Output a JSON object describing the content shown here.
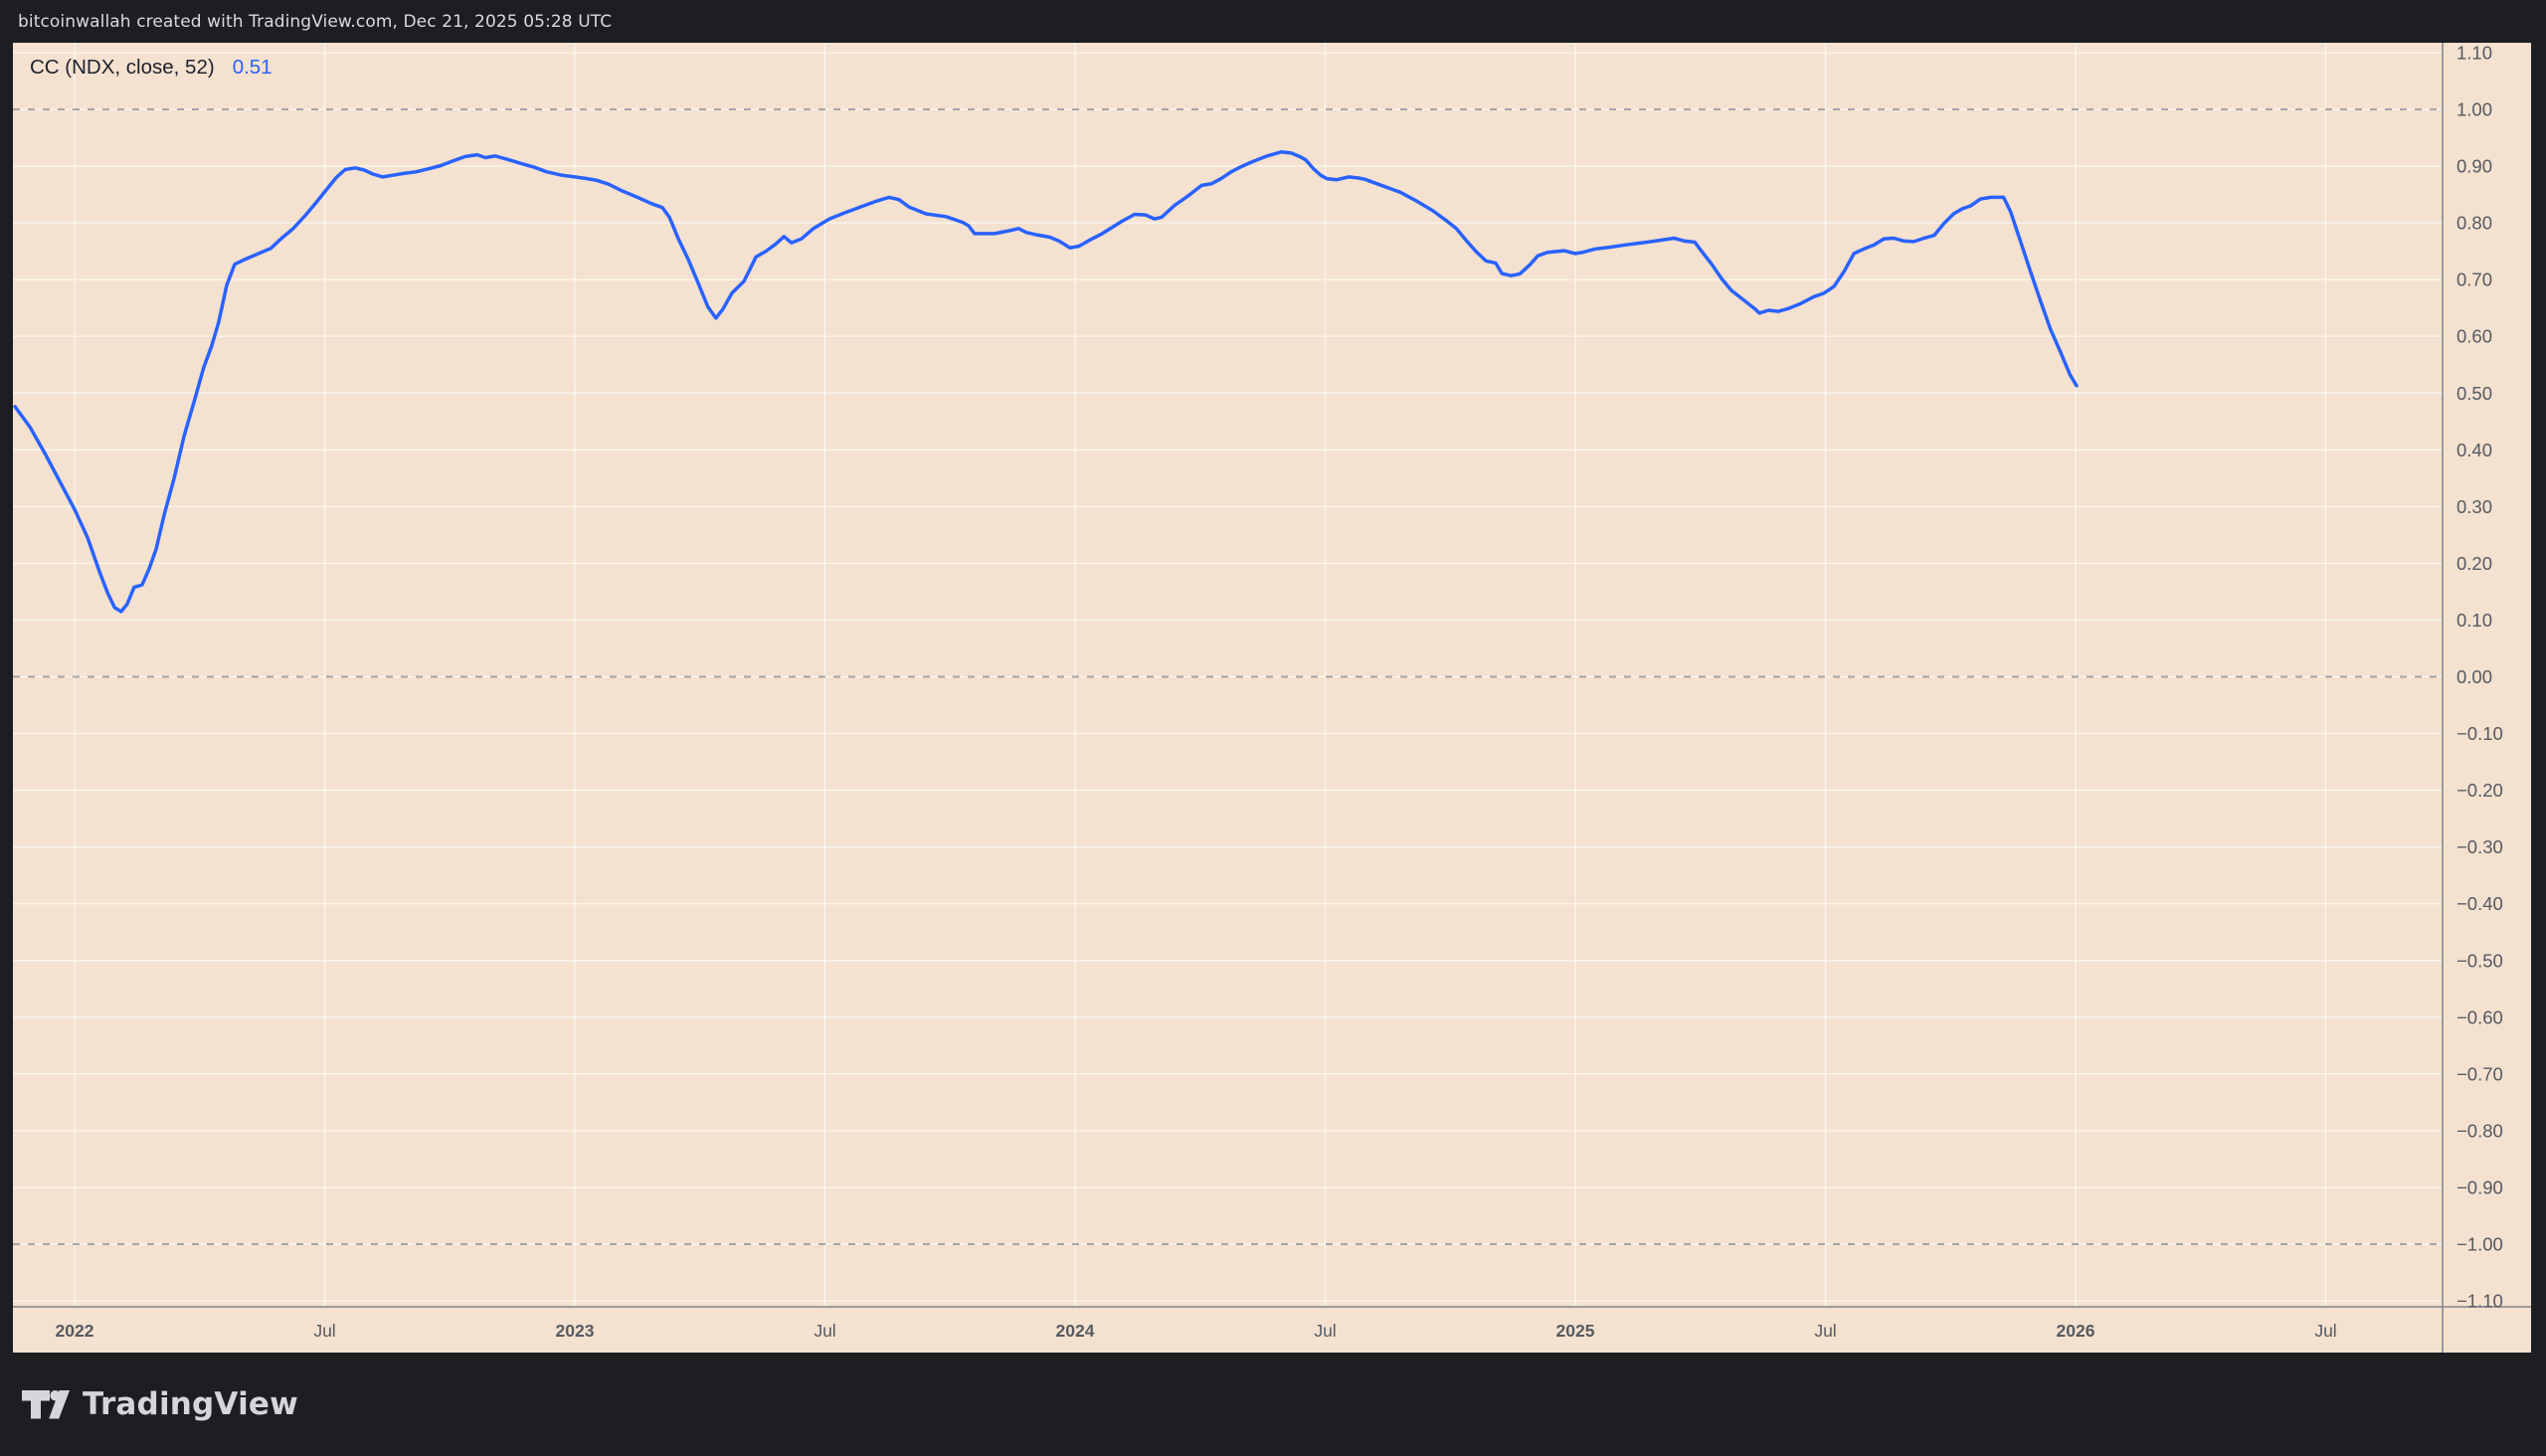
{
  "header": {
    "attribution": "bitcoinwallah created with TradingView.com, Dec 21, 2025 05:28 UTC"
  },
  "legend": {
    "label": "CC (NDX, close, 52)",
    "value": "0.51"
  },
  "footer": {
    "brand": "TradingView"
  },
  "colors": {
    "chrome_bg": "#1d1e22",
    "chart_bg": "#f4e1cf",
    "line": "#2962FF",
    "grid": "rgba(255,255,255,0.65)",
    "dashed_level": "#a7a4a8",
    "axis_separator": "#81838a",
    "axis_text": "#565a62",
    "legend_text": "#1e222d",
    "value_text": "#2962FF",
    "attribution_text": "#d9dadd",
    "brand_text": "#d4d6da"
  },
  "chart_data": {
    "type": "line",
    "title": "CC (NDX, close, 52)",
    "indicator": "Correlation Coefficient",
    "symbol": "NDX",
    "source": "close",
    "length": 52,
    "last_value": 0.51,
    "ylim": [
      -1.1,
      1.1
    ],
    "y_step": 0.1,
    "grid": true,
    "legend_position": "top-left",
    "dashed_levels": [
      1.0,
      0.0,
      -1.0
    ],
    "y_ticks": [
      {
        "label": "1.10",
        "value": 1.1
      },
      {
        "label": "1.00",
        "value": 1.0
      },
      {
        "label": "0.90",
        "value": 0.9
      },
      {
        "label": "0.80",
        "value": 0.8
      },
      {
        "label": "0.70",
        "value": 0.7
      },
      {
        "label": "0.60",
        "value": 0.6
      },
      {
        "label": "0.50",
        "value": 0.5
      },
      {
        "label": "0.40",
        "value": 0.4
      },
      {
        "label": "0.30",
        "value": 0.3
      },
      {
        "label": "0.20",
        "value": 0.2
      },
      {
        "label": "0.10",
        "value": 0.1
      },
      {
        "label": "0.00",
        "value": 0.0
      },
      {
        "label": "−0.10",
        "value": -0.1
      },
      {
        "label": "−0.20",
        "value": -0.2
      },
      {
        "label": "−0.30",
        "value": -0.3
      },
      {
        "label": "−0.40",
        "value": -0.4
      },
      {
        "label": "−0.50",
        "value": -0.5
      },
      {
        "label": "−0.60",
        "value": -0.6
      },
      {
        "label": "−0.70",
        "value": -0.7
      },
      {
        "label": "−0.80",
        "value": -0.8
      },
      {
        "label": "−0.90",
        "value": -0.9
      },
      {
        "label": "−1.00",
        "value": -1.0
      },
      {
        "label": "−1.10",
        "value": -1.1
      }
    ],
    "x_ticks": [
      {
        "label": "2022",
        "year": 2022.0,
        "bold": true
      },
      {
        "label": "Jul",
        "year": 2022.5,
        "bold": false
      },
      {
        "label": "2023",
        "year": 2023.0,
        "bold": true
      },
      {
        "label": "Jul",
        "year": 2023.5,
        "bold": false
      },
      {
        "label": "2024",
        "year": 2024.0,
        "bold": true
      },
      {
        "label": "Jul",
        "year": 2024.5,
        "bold": false
      },
      {
        "label": "2025",
        "year": 2025.0,
        "bold": true
      },
      {
        "label": "Jul",
        "year": 2025.5,
        "bold": false
      },
      {
        "label": "2026",
        "year": 2026.0,
        "bold": true
      },
      {
        "label": "Jul",
        "year": 2026.5,
        "bold": false
      }
    ],
    "series": [
      {
        "name": "CC (NDX, close, 52)",
        "color": "#2962FF",
        "points": [
          [
            2021.881,
            0.476
          ],
          [
            2021.911,
            0.44
          ],
          [
            2021.94,
            0.395
          ],
          [
            2021.97,
            0.345
          ],
          [
            2022.0,
            0.295
          ],
          [
            2022.026,
            0.245
          ],
          [
            2022.05,
            0.185
          ],
          [
            2022.066,
            0.148
          ],
          [
            2022.08,
            0.122
          ],
          [
            2022.093,
            0.115
          ],
          [
            2022.105,
            0.128
          ],
          [
            2022.119,
            0.158
          ],
          [
            2022.135,
            0.162
          ],
          [
            2022.149,
            0.19
          ],
          [
            2022.163,
            0.225
          ],
          [
            2022.179,
            0.285
          ],
          [
            2022.199,
            0.35
          ],
          [
            2022.219,
            0.425
          ],
          [
            2022.239,
            0.485
          ],
          [
            2022.258,
            0.545
          ],
          [
            2022.274,
            0.583
          ],
          [
            2022.288,
            0.625
          ],
          [
            2022.304,
            0.69
          ],
          [
            2022.32,
            0.727
          ],
          [
            2022.344,
            0.737
          ],
          [
            2022.368,
            0.746
          ],
          [
            2022.392,
            0.755
          ],
          [
            2022.414,
            0.773
          ],
          [
            2022.437,
            0.79
          ],
          [
            2022.461,
            0.813
          ],
          [
            2022.483,
            0.836
          ],
          [
            2022.503,
            0.858
          ],
          [
            2022.523,
            0.88
          ],
          [
            2022.541,
            0.894
          ],
          [
            2022.561,
            0.897
          ],
          [
            2022.579,
            0.893
          ],
          [
            2022.596,
            0.886
          ],
          [
            2022.616,
            0.881
          ],
          [
            2022.636,
            0.884
          ],
          [
            2022.656,
            0.887
          ],
          [
            2022.682,
            0.89
          ],
          [
            2022.706,
            0.895
          ],
          [
            2022.732,
            0.901
          ],
          [
            2022.756,
            0.909
          ],
          [
            2022.781,
            0.917
          ],
          [
            2022.805,
            0.92
          ],
          [
            2022.821,
            0.915
          ],
          [
            2022.841,
            0.918
          ],
          [
            2022.865,
            0.912
          ],
          [
            2022.891,
            0.905
          ],
          [
            2022.919,
            0.898
          ],
          [
            2022.944,
            0.89
          ],
          [
            2022.974,
            0.884
          ],
          [
            2023.0,
            0.881
          ],
          [
            2023.024,
            0.878
          ],
          [
            2023.044,
            0.875
          ],
          [
            2023.068,
            0.868
          ],
          [
            2023.093,
            0.857
          ],
          [
            2023.123,
            0.846
          ],
          [
            2023.153,
            0.834
          ],
          [
            2023.175,
            0.827
          ],
          [
            2023.189,
            0.81
          ],
          [
            2023.207,
            0.772
          ],
          [
            2023.227,
            0.735
          ],
          [
            2023.247,
            0.693
          ],
          [
            2023.266,
            0.652
          ],
          [
            2023.282,
            0.632
          ],
          [
            2023.296,
            0.648
          ],
          [
            2023.314,
            0.676
          ],
          [
            2023.338,
            0.697
          ],
          [
            2023.352,
            0.722
          ],
          [
            2023.362,
            0.74
          ],
          [
            2023.382,
            0.75
          ],
          [
            2023.402,
            0.763
          ],
          [
            2023.418,
            0.776
          ],
          [
            2023.433,
            0.765
          ],
          [
            2023.453,
            0.772
          ],
          [
            2023.477,
            0.79
          ],
          [
            2023.509,
            0.807
          ],
          [
            2023.543,
            0.819
          ],
          [
            2023.577,
            0.83
          ],
          [
            2023.602,
            0.838
          ],
          [
            2023.628,
            0.845
          ],
          [
            2023.648,
            0.841
          ],
          [
            2023.668,
            0.828
          ],
          [
            2023.702,
            0.816
          ],
          [
            2023.742,
            0.811
          ],
          [
            2023.775,
            0.801
          ],
          [
            2023.787,
            0.795
          ],
          [
            2023.799,
            0.781
          ],
          [
            2023.839,
            0.781
          ],
          [
            2023.867,
            0.786
          ],
          [
            2023.887,
            0.79
          ],
          [
            2023.903,
            0.783
          ],
          [
            2023.923,
            0.779
          ],
          [
            2023.949,
            0.775
          ],
          [
            2023.968,
            0.768
          ],
          [
            2023.99,
            0.756
          ],
          [
            2024.008,
            0.759
          ],
          [
            2024.03,
            0.77
          ],
          [
            2024.054,
            0.781
          ],
          [
            2024.094,
            0.803
          ],
          [
            2024.119,
            0.815
          ],
          [
            2024.141,
            0.814
          ],
          [
            2024.159,
            0.807
          ],
          [
            2024.173,
            0.81
          ],
          [
            2024.199,
            0.831
          ],
          [
            2024.225,
            0.847
          ],
          [
            2024.253,
            0.866
          ],
          [
            2024.273,
            0.869
          ],
          [
            2024.292,
            0.878
          ],
          [
            2024.312,
            0.89
          ],
          [
            2024.332,
            0.899
          ],
          [
            2024.352,
            0.907
          ],
          [
            2024.384,
            0.918
          ],
          [
            2024.412,
            0.925
          ],
          [
            2024.432,
            0.923
          ],
          [
            2024.451,
            0.916
          ],
          [
            2024.461,
            0.911
          ],
          [
            2024.477,
            0.895
          ],
          [
            2024.491,
            0.884
          ],
          [
            2024.503,
            0.878
          ],
          [
            2024.523,
            0.876
          ],
          [
            2024.547,
            0.881
          ],
          [
            2024.567,
            0.879
          ],
          [
            2024.579,
            0.877
          ],
          [
            2024.603,
            0.869
          ],
          [
            2024.622,
            0.863
          ],
          [
            2024.65,
            0.854
          ],
          [
            2024.682,
            0.839
          ],
          [
            2024.716,
            0.821
          ],
          [
            2024.742,
            0.804
          ],
          [
            2024.762,
            0.79
          ],
          [
            2024.782,
            0.769
          ],
          [
            2024.801,
            0.75
          ],
          [
            2024.821,
            0.733
          ],
          [
            2024.841,
            0.729
          ],
          [
            2024.853,
            0.711
          ],
          [
            2024.871,
            0.707
          ],
          [
            2024.889,
            0.71
          ],
          [
            2024.909,
            0.726
          ],
          [
            2024.925,
            0.742
          ],
          [
            2024.944,
            0.748
          ],
          [
            2024.978,
            0.751
          ],
          [
            2025.0,
            0.746
          ],
          [
            2025.014,
            0.748
          ],
          [
            2025.04,
            0.754
          ],
          [
            2025.068,
            0.757
          ],
          [
            2025.099,
            0.761
          ],
          [
            2025.133,
            0.765
          ],
          [
            2025.159,
            0.768
          ],
          [
            2025.197,
            0.773
          ],
          [
            2025.219,
            0.768
          ],
          [
            2025.239,
            0.766
          ],
          [
            2025.249,
            0.754
          ],
          [
            2025.272,
            0.728
          ],
          [
            2025.292,
            0.702
          ],
          [
            2025.312,
            0.681
          ],
          [
            2025.338,
            0.663
          ],
          [
            2025.358,
            0.649
          ],
          [
            2025.368,
            0.641
          ],
          [
            2025.386,
            0.646
          ],
          [
            2025.406,
            0.644
          ],
          [
            2025.426,
            0.649
          ],
          [
            2025.451,
            0.658
          ],
          [
            2025.477,
            0.67
          ],
          [
            2025.497,
            0.676
          ],
          [
            2025.517,
            0.688
          ],
          [
            2025.537,
            0.714
          ],
          [
            2025.557,
            0.746
          ],
          [
            2025.577,
            0.754
          ],
          [
            2025.597,
            0.761
          ],
          [
            2025.617,
            0.772
          ],
          [
            2025.637,
            0.773
          ],
          [
            2025.657,
            0.768
          ],
          [
            2025.677,
            0.767
          ],
          [
            2025.697,
            0.773
          ],
          [
            2025.717,
            0.778
          ],
          [
            2025.736,
            0.798
          ],
          [
            2025.756,
            0.816
          ],
          [
            2025.774,
            0.825
          ],
          [
            2025.79,
            0.83
          ],
          [
            2025.81,
            0.842
          ],
          [
            2025.83,
            0.845
          ],
          [
            2025.856,
            0.845
          ],
          [
            2025.87,
            0.82
          ],
          [
            2025.89,
            0.767
          ],
          [
            2025.91,
            0.714
          ],
          [
            2025.93,
            0.662
          ],
          [
            2025.95,
            0.612
          ],
          [
            2025.969,
            0.574
          ],
          [
            2025.989,
            0.532
          ],
          [
            2026.002,
            0.513
          ]
        ]
      }
    ]
  }
}
